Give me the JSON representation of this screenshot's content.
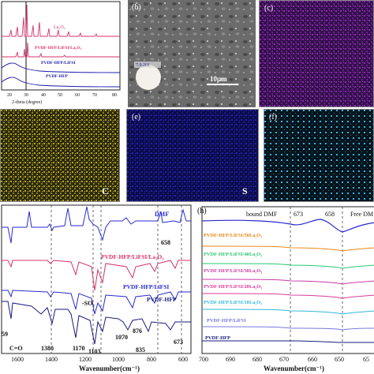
{
  "colors": {
    "pvdf": "#1a1aa8",
    "lifsi": "#5a5ad8",
    "la2o3": "#d8306a",
    "dmf": "#2a2ad0",
    "o_map": "#7a1c9a",
    "c_map": "#b8a820",
    "s_map": "#1c1ca8",
    "f_map": "#2ab8d8",
    "trace10": "#30b8d8",
    "trace20": "#d83c9c",
    "trace30": "#c83ca8",
    "trace40": "#2ac870",
    "trace50": "#e88818"
  },
  "panel_a": {
    "labels": [
      "La₂O₃",
      "PVDF-HFP/LiFSI/La₂O₃",
      "PVDF-HFP/LiFSI",
      "PVDF-HFP"
    ],
    "x_ticks": [
      "20",
      "30",
      "40",
      "50",
      "60",
      "70",
      "80"
    ],
    "xlabel": "2-theta (degree)"
  },
  "panel_b": {
    "letter": "(b)",
    "scalebar": "10μm",
    "inset_text": "7.9.201"
  },
  "panel_c": {
    "letter": "(c)"
  },
  "panel_d": {
    "element": "C"
  },
  "panel_e": {
    "letter": "(e)",
    "element": "S"
  },
  "panel_f": {
    "letter": "(f)"
  },
  "panel_g": {
    "labels": {
      "dmf": "DMF",
      "la2o3": "PVDF-HFP/LiFSI/La₂O₃",
      "lifsi": "PVDF-HFP/LiFSI",
      "pvdf": "PVDF-HFP"
    },
    "annotations": [
      "658",
      "-SO₂",
      "C=O",
      "1380",
      "1170",
      "1103",
      "1070",
      "876",
      "835",
      "673",
      "59"
    ],
    "x_ticks": [
      "1600",
      "1400",
      "1200",
      "1000",
      "800",
      "600"
    ],
    "xlabel": "Wavenumber(cm⁻¹)"
  },
  "panel_h": {
    "letter": "(h)",
    "header": {
      "bound": "bound DMF",
      "v673": "673",
      "v658": "658",
      "free": "Free DM"
    },
    "traces": [
      "PVDF-HFP/LiFSI/50La₂O₃",
      "PVDF-HFP/LiFSI/40La₂O₃",
      "PVDF-HFP/LiFSI/30La₂O₃",
      "PVDF-HFP/LiFSI/20La₂O₃",
      "PVDF-HFP/LiFSI/10La₂O₃",
      "PVDF-HFP/LiFSI",
      "PVDF-HFP"
    ],
    "x_ticks": [
      "700",
      "690",
      "680",
      "670",
      "660",
      "650",
      "65"
    ],
    "xlabel": "Wavenumber(cm⁻¹)"
  }
}
